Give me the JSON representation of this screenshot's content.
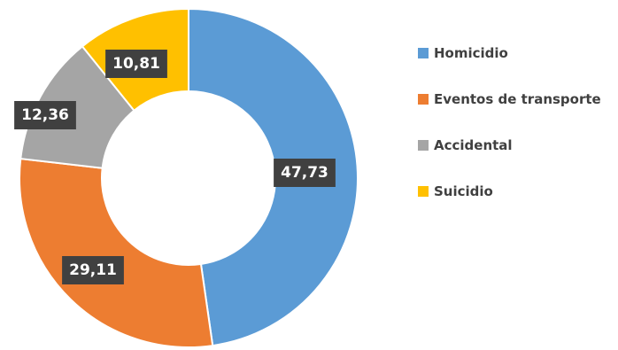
{
  "chart_data": {
    "type": "pie",
    "variant": "donut",
    "legend_position": "right",
    "categories": [
      "Homicidio",
      "Eventos de transporte",
      "Accidental",
      "Suicidio"
    ],
    "values": [
      47.73,
      29.11,
      12.36,
      10.81
    ],
    "data_labels": [
      "47,73",
      "29,11",
      "12,36",
      "10,81"
    ],
    "colors": [
      "#5B9BD5",
      "#ED7D31",
      "#A5A5A5",
      "#FFC000"
    ],
    "label_box_color": "#404040"
  }
}
